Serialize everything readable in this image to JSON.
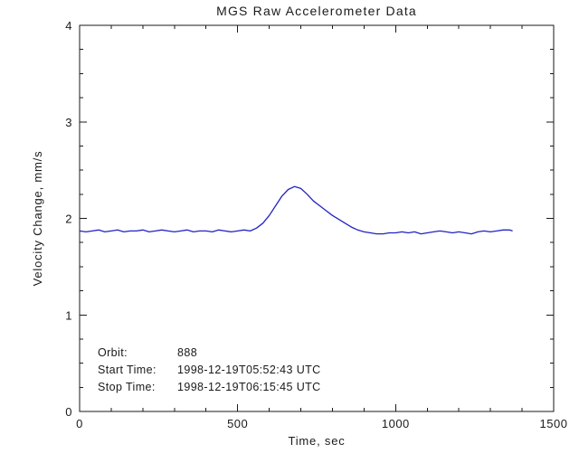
{
  "title": "MGS Raw Accelerometer Data",
  "chart_data": {
    "type": "line",
    "title": "MGS Raw Accelerometer Data",
    "xlabel": "Time, sec",
    "ylabel": "Velocity Change, mm/s",
    "xlim": [
      0,
      1500
    ],
    "ylim": [
      0,
      4
    ],
    "xticks": [
      0,
      500,
      1000,
      1500
    ],
    "yticks": [
      0,
      1,
      2,
      3,
      4
    ],
    "x_minor_step": 100,
    "y_minor_step": 0.25,
    "grid": false,
    "legend": "none",
    "line_color": "#2222c4",
    "series": [
      {
        "name": "raw accelerometer velocity change",
        "x": [
          0,
          20,
          40,
          60,
          80,
          100,
          120,
          140,
          160,
          180,
          200,
          220,
          240,
          260,
          280,
          300,
          320,
          340,
          360,
          380,
          400,
          420,
          440,
          460,
          480,
          500,
          520,
          540,
          560,
          580,
          600,
          620,
          640,
          660,
          680,
          700,
          720,
          740,
          760,
          780,
          800,
          820,
          840,
          860,
          880,
          900,
          920,
          940,
          960,
          980,
          1000,
          1020,
          1040,
          1060,
          1080,
          1100,
          1120,
          1140,
          1160,
          1180,
          1200,
          1220,
          1240,
          1260,
          1280,
          1300,
          1320,
          1340,
          1360,
          1370
        ],
        "y": [
          1.87,
          1.86,
          1.87,
          1.88,
          1.86,
          1.87,
          1.88,
          1.86,
          1.87,
          1.87,
          1.88,
          1.86,
          1.87,
          1.88,
          1.87,
          1.86,
          1.87,
          1.88,
          1.86,
          1.87,
          1.87,
          1.86,
          1.88,
          1.87,
          1.86,
          1.87,
          1.88,
          1.87,
          1.9,
          1.95,
          2.03,
          2.13,
          2.23,
          2.3,
          2.33,
          2.31,
          2.25,
          2.18,
          2.13,
          2.08,
          2.03,
          1.99,
          1.95,
          1.91,
          1.88,
          1.86,
          1.85,
          1.84,
          1.84,
          1.85,
          1.85,
          1.86,
          1.85,
          1.86,
          1.84,
          1.85,
          1.86,
          1.87,
          1.86,
          1.85,
          1.86,
          1.85,
          1.84,
          1.86,
          1.87,
          1.86,
          1.87,
          1.88,
          1.88,
          1.87
        ]
      }
    ],
    "annotations_text": [
      "Orbit:       888",
      "Start Time: 1998-12-19T05:52:43 UTC",
      "Stop Time: 1998-12-19T06:15:45 UTC"
    ]
  },
  "annotations": {
    "orbit_label": "Orbit:",
    "orbit_value": "888",
    "start_label": "Start Time:",
    "start_value": "1998-12-19T05:52:43 UTC",
    "stop_label": "Stop Time:",
    "stop_value": "1998-12-19T06:15:45 UTC"
  }
}
